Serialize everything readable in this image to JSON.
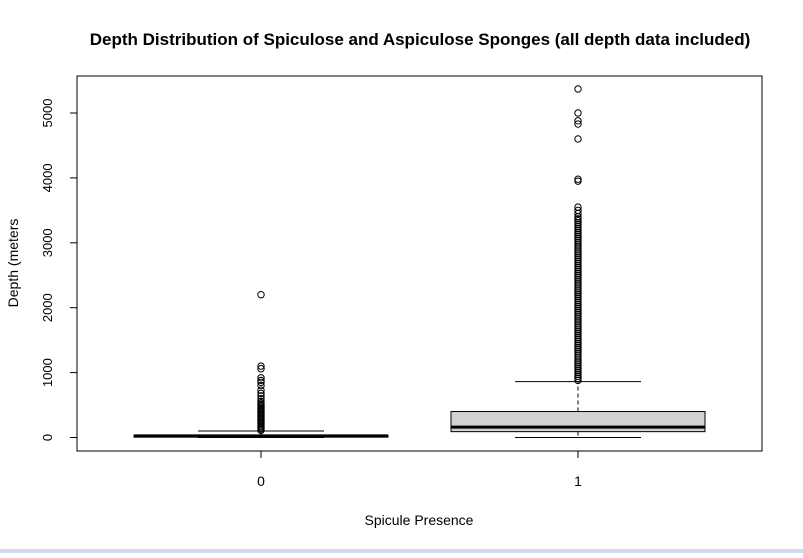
{
  "chart_data": {
    "type": "boxplot",
    "title": "Depth Distribution of Spiculose and Aspiculose Sponges (all depth data included)",
    "xlabel": "Spicule Presence",
    "ylabel": "Depth (meters",
    "categories": [
      "0",
      "1"
    ],
    "ylim": [
      -200,
      5550
    ],
    "yticks": [
      0,
      1000,
      2000,
      3000,
      4000,
      5000
    ],
    "grid": false,
    "legend": "none",
    "box_fill": [
      "#d3d3d3",
      "#d3d3d3"
    ],
    "series": [
      {
        "category": "0",
        "whisker_low": 0,
        "q1": 5,
        "median": 25,
        "q3": 35,
        "whisker_high": 100,
        "outliers": [
          110,
          130,
          150,
          170,
          190,
          210,
          230,
          250,
          270,
          290,
          310,
          330,
          350,
          370,
          390,
          410,
          430,
          450,
          470,
          490,
          510,
          530,
          560,
          600,
          640,
          680,
          730,
          800,
          850,
          880,
          920,
          1060,
          1100,
          2200
        ]
      },
      {
        "category": "1",
        "whisker_low": 0,
        "q1": 90,
        "median": 160,
        "q3": 400,
        "whisker_high": 860,
        "outliers": [
          880,
          910,
          940,
          970,
          1000,
          1030,
          1060,
          1090,
          1120,
          1150,
          1180,
          1210,
          1240,
          1270,
          1300,
          1330,
          1360,
          1390,
          1420,
          1450,
          1480,
          1510,
          1540,
          1570,
          1600,
          1630,
          1660,
          1690,
          1720,
          1750,
          1780,
          1810,
          1840,
          1870,
          1900,
          1930,
          1960,
          1990,
          2020,
          2050,
          2080,
          2110,
          2140,
          2170,
          2200,
          2230,
          2260,
          2290,
          2320,
          2350,
          2380,
          2410,
          2440,
          2470,
          2500,
          2530,
          2560,
          2590,
          2620,
          2650,
          2680,
          2710,
          2740,
          2770,
          2800,
          2830,
          2860,
          2890,
          2920,
          2950,
          2980,
          3010,
          3040,
          3070,
          3100,
          3130,
          3160,
          3190,
          3220,
          3250,
          3280,
          3310,
          3340,
          3370,
          3400,
          3450,
          3500,
          3550,
          3950,
          3980,
          4600,
          4830,
          4880,
          5000,
          5370
        ]
      }
    ]
  }
}
